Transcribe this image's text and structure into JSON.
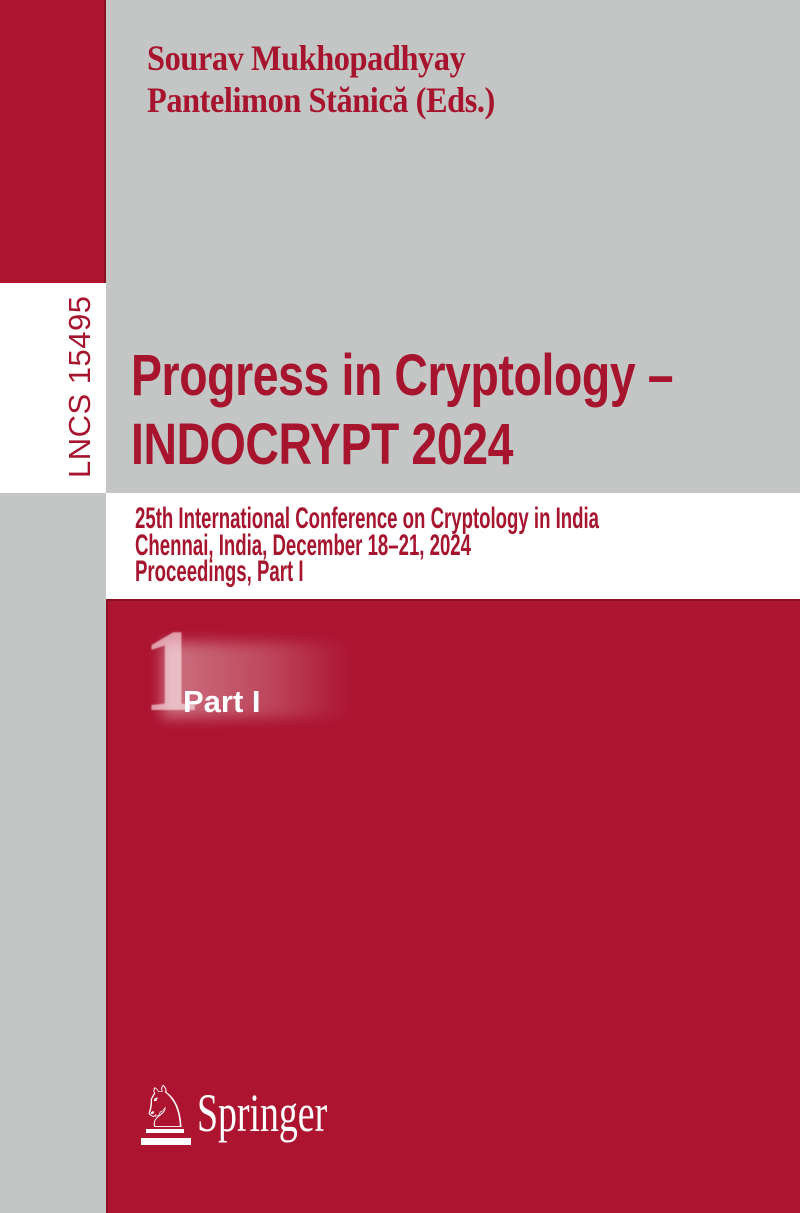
{
  "cover": {
    "series_label": "LNCS 15495",
    "editors": [
      "Sourav Mukhopadhyay",
      "Pantelimon Stănică (Eds.)"
    ],
    "title_line1": "Progress in Cryptology –",
    "title_line2": "INDOCRYPT 2024",
    "subtitle_line1": "25th International Conference on Cryptology in India",
    "subtitle_line2": "Chennai, India, December 18–21, 2024",
    "subtitle_line3": "Proceedings, Part I",
    "part_number": "1",
    "part_label": "Part I",
    "publisher": {
      "name": "Springer",
      "logo_icon": "springer-horse-icon",
      "logo_glyph": "♘"
    }
  },
  "colors": {
    "cover_red": "#AC1430",
    "text_red": "#A6142E",
    "background_gray": "#C4C6C5",
    "band_white": "#FFFFFF",
    "edge_dark_red": "#8B1024",
    "part_label_white": "#FFFFFF"
  }
}
